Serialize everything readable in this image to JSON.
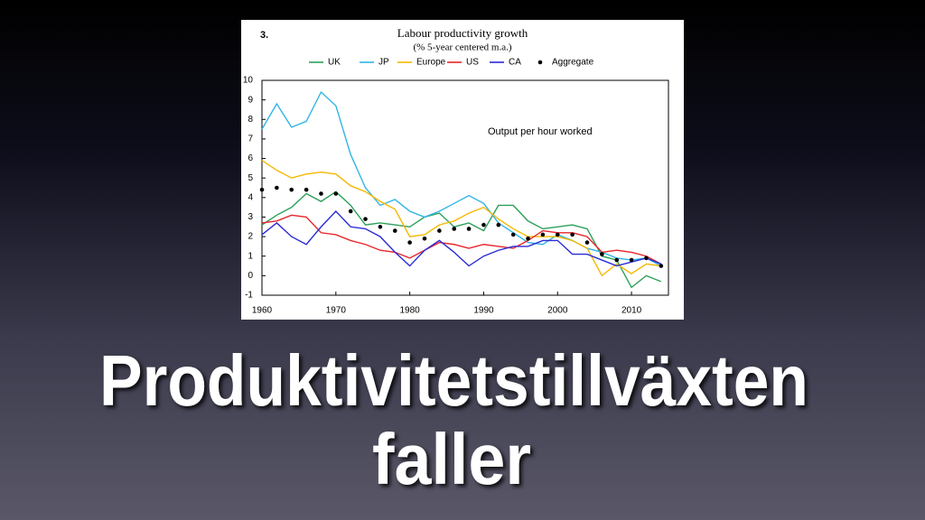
{
  "slide": {
    "title_lines": [
      "Produktivitetstillväxten",
      "faller"
    ]
  },
  "chart_data": {
    "type": "line",
    "label": "3.",
    "title": "Labour productivity growth",
    "subtitle": "(% 5-year centered m.a.)",
    "annotation": "Output per hour worked",
    "legend": "top",
    "grid": false,
    "x": [
      1960,
      1962,
      1964,
      1966,
      1968,
      1970,
      1972,
      1974,
      1976,
      1978,
      1980,
      1982,
      1984,
      1986,
      1988,
      1990,
      1992,
      1994,
      1996,
      1998,
      2000,
      2002,
      2004,
      2006,
      2008,
      2010,
      2012,
      2014
    ],
    "xlim": [
      1960,
      2015
    ],
    "xticks": [
      1960,
      1970,
      1980,
      1990,
      2000,
      2010
    ],
    "ylim": [
      -1,
      10
    ],
    "yticks": [
      -1,
      0,
      1,
      2,
      3,
      4,
      5,
      6,
      7,
      8,
      9,
      10
    ],
    "series": [
      {
        "name": "UK",
        "color": "#2ca05a",
        "values": [
          2.6,
          3.1,
          3.5,
          4.2,
          3.8,
          4.3,
          3.6,
          2.6,
          2.7,
          2.6,
          2.5,
          3.0,
          3.2,
          2.5,
          2.7,
          2.3,
          3.6,
          3.6,
          2.8,
          2.4,
          2.5,
          2.6,
          2.4,
          1.0,
          0.8,
          -0.6,
          0.0,
          -0.3
        ]
      },
      {
        "name": "JP",
        "color": "#33b5e5",
        "values": [
          7.5,
          8.8,
          7.6,
          7.9,
          9.4,
          8.7,
          6.2,
          4.5,
          3.6,
          3.9,
          3.3,
          3.0,
          3.3,
          3.7,
          4.1,
          3.7,
          2.7,
          2.2,
          1.7,
          1.6,
          2.1,
          1.8,
          1.4,
          1.2,
          0.9,
          0.8,
          0.9,
          0.5
        ]
      },
      {
        "name": "Europe",
        "color": "#f5b800",
        "values": [
          5.9,
          5.4,
          5.0,
          5.2,
          5.3,
          5.2,
          4.6,
          4.3,
          3.8,
          3.4,
          2.0,
          2.1,
          2.6,
          2.8,
          3.2,
          3.5,
          2.9,
          2.4,
          2.0,
          2.0,
          2.0,
          1.8,
          1.4,
          0.0,
          0.6,
          0.1,
          0.6,
          0.5
        ]
      },
      {
        "name": "US",
        "color": "#e8262a",
        "values": [
          2.7,
          2.8,
          3.1,
          3.0,
          2.2,
          2.1,
          1.8,
          1.6,
          1.3,
          1.2,
          0.9,
          1.3,
          1.7,
          1.6,
          1.4,
          1.6,
          1.5,
          1.4,
          1.8,
          2.3,
          2.2,
          2.2,
          2.0,
          1.2,
          1.3,
          1.2,
          1.0,
          0.6
        ]
      },
      {
        "name": "CA",
        "color": "#2b2bd6",
        "values": [
          2.1,
          2.7,
          2.0,
          1.6,
          2.5,
          3.3,
          2.5,
          2.4,
          2.0,
          1.2,
          0.5,
          1.3,
          1.8,
          1.2,
          0.5,
          1.0,
          1.3,
          1.5,
          1.5,
          1.8,
          1.8,
          1.1,
          1.1,
          0.8,
          0.5,
          0.7,
          0.9,
          0.6
        ]
      },
      {
        "name": "Aggregate",
        "color": "#000000",
        "marker": "dot",
        "values": [
          4.4,
          4.5,
          4.4,
          4.4,
          4.2,
          4.2,
          3.3,
          2.9,
          2.5,
          2.3,
          1.7,
          1.9,
          2.3,
          2.4,
          2.4,
          2.6,
          2.6,
          2.1,
          1.9,
          2.1,
          2.1,
          2.1,
          1.7,
          1.1,
          0.8,
          0.8,
          0.9,
          0.5
        ]
      }
    ]
  }
}
